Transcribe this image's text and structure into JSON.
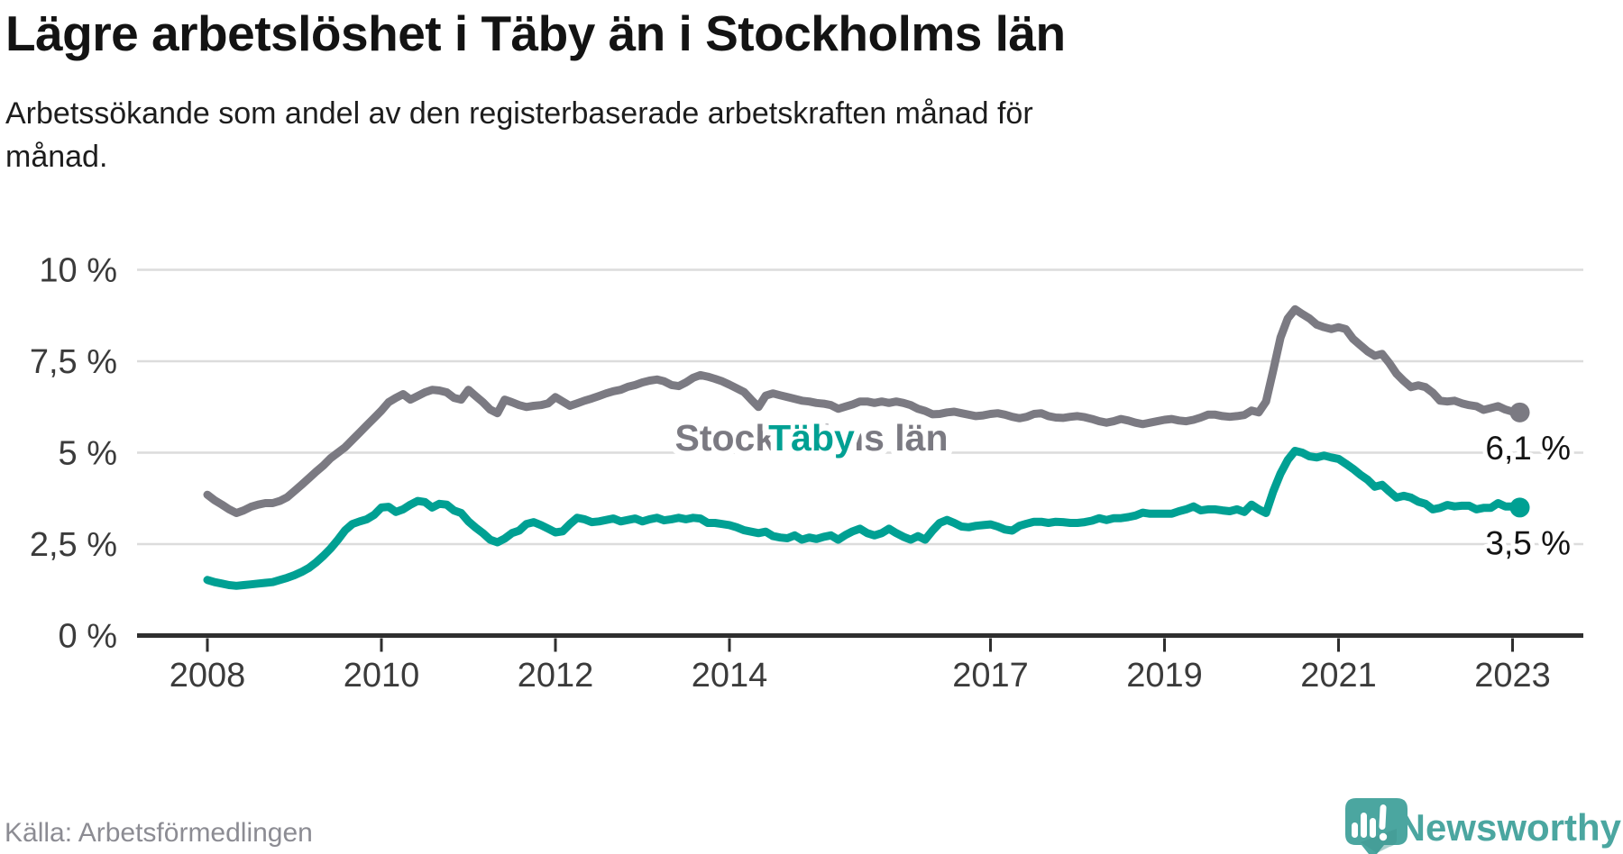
{
  "header": {
    "title": "Lägre arbetslöshet i Täby än i Stockholms län",
    "subtitle": "Arbetssökande som andel av den registerbaserade arbetskraften månad för\nmånad."
  },
  "footer": {
    "source": "Källa: Arbetsförmedlingen",
    "brand": "Newsworthy"
  },
  "colors": {
    "stockholm_line": "#7b7a82",
    "taby_line": "#00a093",
    "grid": "#dcdcdc",
    "axis": "#2e2e2e",
    "tick_text": "#3b3b3b",
    "value_text": "#141414",
    "logo": "#4ba6a0"
  },
  "chart_data": {
    "type": "line",
    "title": "Lägre arbetslöshet i Täby än i Stockholms län",
    "subtitle": "Arbetssökande som andel av den registerbaserade arbetskraften månad för månad.",
    "x_start": "2008-01",
    "x_end": "2023-02",
    "x_interval": "monthly",
    "ylim": [
      0,
      10.8
    ],
    "grid": "horizontal",
    "legend_position": "inline-labels",
    "y_ticks": [
      {
        "value": 0,
        "label": "0 %"
      },
      {
        "value": 2.5,
        "label": "2,5 %"
      },
      {
        "value": 5,
        "label": "5 %"
      },
      {
        "value": 7.5,
        "label": "7,5 %"
      },
      {
        "value": 10,
        "label": "10 %"
      }
    ],
    "x_ticks": [
      {
        "year": 2008,
        "label": "2008"
      },
      {
        "year": 2010,
        "label": "2010"
      },
      {
        "year": 2012,
        "label": "2012"
      },
      {
        "year": 2014,
        "label": "2014"
      },
      {
        "year": 2017,
        "label": "2017"
      },
      {
        "year": 2019,
        "label": "2019"
      },
      {
        "year": 2021,
        "label": "2021"
      },
      {
        "year": 2023,
        "label": "2023"
      }
    ],
    "series": [
      {
        "name": "Stockholms län",
        "color": "#7b7a82",
        "end_value": 6.1,
        "end_label": "6,1 %",
        "values": [
          3.85,
          3.7,
          3.58,
          3.45,
          3.35,
          3.42,
          3.52,
          3.58,
          3.62,
          3.62,
          3.68,
          3.78,
          3.95,
          4.12,
          4.3,
          4.48,
          4.65,
          4.85,
          5.0,
          5.15,
          5.35,
          5.55,
          5.75,
          5.95,
          6.15,
          6.38,
          6.5,
          6.6,
          6.45,
          6.55,
          6.65,
          6.72,
          6.7,
          6.65,
          6.5,
          6.45,
          6.72,
          6.55,
          6.38,
          6.18,
          6.08,
          6.45,
          6.38,
          6.3,
          6.25,
          6.28,
          6.3,
          6.35,
          6.52,
          6.4,
          6.28,
          6.35,
          6.42,
          6.48,
          6.55,
          6.62,
          6.68,
          6.72,
          6.8,
          6.85,
          6.92,
          6.97,
          7.0,
          6.95,
          6.85,
          6.82,
          6.92,
          7.05,
          7.12,
          7.08,
          7.02,
          6.95,
          6.86,
          6.76,
          6.66,
          6.45,
          6.25,
          6.56,
          6.62,
          6.57,
          6.52,
          6.47,
          6.42,
          6.4,
          6.36,
          6.34,
          6.3,
          6.2,
          6.26,
          6.32,
          6.4,
          6.4,
          6.36,
          6.4,
          6.36,
          6.4,
          6.36,
          6.3,
          6.2,
          6.14,
          6.05,
          6.06,
          6.1,
          6.12,
          6.08,
          6.04,
          6.0,
          6.02,
          6.06,
          6.08,
          6.04,
          5.98,
          5.94,
          5.98,
          6.06,
          6.08,
          6.0,
          5.96,
          5.95,
          5.98,
          6.0,
          5.97,
          5.92,
          5.86,
          5.82,
          5.86,
          5.92,
          5.88,
          5.82,
          5.78,
          5.82,
          5.86,
          5.9,
          5.92,
          5.88,
          5.86,
          5.9,
          5.96,
          6.04,
          6.04,
          6.0,
          5.98,
          6.0,
          6.03,
          6.15,
          6.1,
          6.4,
          7.25,
          8.15,
          8.67,
          8.92,
          8.79,
          8.67,
          8.5,
          8.43,
          8.38,
          8.43,
          8.38,
          8.11,
          7.94,
          7.77,
          7.65,
          7.7,
          7.45,
          7.16,
          6.96,
          6.79,
          6.84,
          6.79,
          6.64,
          6.42,
          6.4,
          6.42,
          6.35,
          6.3,
          6.27,
          6.17,
          6.22,
          6.27,
          6.18,
          6.12,
          6.1
        ]
      },
      {
        "name": "Täby",
        "color": "#00a093",
        "end_value": 3.5,
        "end_label": "3,5 %",
        "values": [
          1.52,
          1.46,
          1.42,
          1.38,
          1.36,
          1.38,
          1.4,
          1.42,
          1.44,
          1.46,
          1.52,
          1.58,
          1.65,
          1.74,
          1.85,
          2.0,
          2.18,
          2.38,
          2.62,
          2.88,
          3.05,
          3.12,
          3.18,
          3.3,
          3.5,
          3.52,
          3.38,
          3.45,
          3.58,
          3.68,
          3.65,
          3.5,
          3.6,
          3.58,
          3.42,
          3.35,
          3.12,
          2.95,
          2.8,
          2.62,
          2.55,
          2.65,
          2.8,
          2.87,
          3.05,
          3.1,
          3.02,
          2.92,
          2.82,
          2.85,
          3.05,
          3.22,
          3.18,
          3.1,
          3.12,
          3.16,
          3.2,
          3.12,
          3.16,
          3.2,
          3.12,
          3.18,
          3.22,
          3.15,
          3.18,
          3.22,
          3.18,
          3.22,
          3.2,
          3.08,
          3.08,
          3.05,
          3.02,
          2.96,
          2.88,
          2.84,
          2.8,
          2.84,
          2.72,
          2.68,
          2.66,
          2.74,
          2.62,
          2.68,
          2.64,
          2.7,
          2.74,
          2.62,
          2.75,
          2.85,
          2.92,
          2.8,
          2.74,
          2.8,
          2.92,
          2.8,
          2.7,
          2.62,
          2.72,
          2.62,
          2.87,
          3.08,
          3.16,
          3.08,
          2.98,
          2.96,
          3.0,
          3.02,
          3.04,
          2.98,
          2.9,
          2.87,
          3.0,
          3.06,
          3.11,
          3.11,
          3.08,
          3.11,
          3.1,
          3.08,
          3.08,
          3.1,
          3.14,
          3.21,
          3.16,
          3.21,
          3.21,
          3.24,
          3.28,
          3.36,
          3.33,
          3.33,
          3.33,
          3.33,
          3.4,
          3.45,
          3.53,
          3.42,
          3.45,
          3.45,
          3.42,
          3.4,
          3.45,
          3.38,
          3.58,
          3.45,
          3.35,
          3.94,
          4.43,
          4.8,
          5.05,
          5.0,
          4.9,
          4.87,
          4.92,
          4.87,
          4.83,
          4.7,
          4.56,
          4.4,
          4.26,
          4.07,
          4.12,
          3.94,
          3.77,
          3.82,
          3.77,
          3.66,
          3.6,
          3.45,
          3.49,
          3.57,
          3.53,
          3.55,
          3.55,
          3.45,
          3.49,
          3.49,
          3.62,
          3.53,
          3.53,
          3.5
        ]
      }
    ]
  }
}
